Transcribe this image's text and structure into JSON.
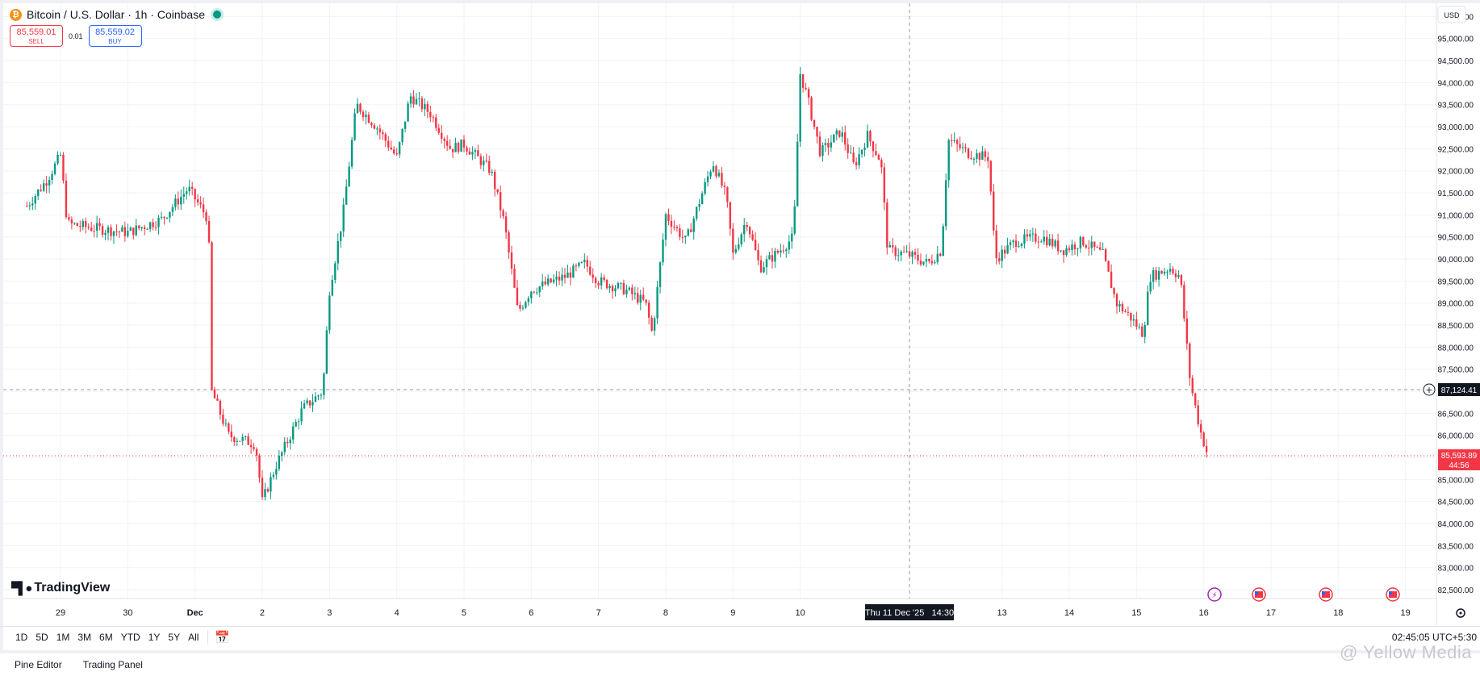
{
  "header": {
    "title": "Bitcoin / U.S. Dollar · 1h · Coinbase",
    "coin_icon": "bitcoin-icon",
    "status": "live-dot"
  },
  "trade": {
    "sell_price": "85,559.01",
    "sell_label": "SELL",
    "spread": "0.01",
    "buy_price": "85,559.02",
    "buy_label": "BUY"
  },
  "currency": "USD",
  "price_badges": {
    "marked_price": "87,124.41",
    "current_price": "85,593.89",
    "countdown": "44:56"
  },
  "crosshair_label": "Thu 11 Dec '25   14:30",
  "logo": "TradingView",
  "toolbar": {
    "ranges": [
      "1D",
      "5D",
      "1M",
      "3M",
      "6M",
      "YTD",
      "1Y",
      "5Y",
      "All"
    ],
    "clock": "02:45:05 UTC+5:30"
  },
  "panels": [
    "Pine Editor",
    "Trading Panel"
  ],
  "watermark": "@ Yellow Media",
  "colors": {
    "up": "#089981",
    "down": "#f23645",
    "grid": "#f0f3fa",
    "badge_dark": "#131722"
  },
  "chart_data": {
    "type": "candlestick",
    "title": "Bitcoin / U.S. Dollar · 1h · Coinbase",
    "xlabel": "",
    "ylabel": "",
    "x_ticks": [
      "29",
      "30",
      "Dec",
      "2",
      "3",
      "4",
      "5",
      "6",
      "7",
      "8",
      "9",
      "10",
      "13",
      "14",
      "15",
      "16",
      "17",
      "18",
      "19"
    ],
    "y_ticks": [
      "95,500.00",
      "95,000.00",
      "94,500.00",
      "94,000.00",
      "93,500.00",
      "93,000.00",
      "92,500.00",
      "92,000.00",
      "91,500.00",
      "91,000.00",
      "90,500.00",
      "90,000.00",
      "89,500.00",
      "89,000.00",
      "88,500.00",
      "88,000.00",
      "87,500.00",
      "87,000.00",
      "86,500.00",
      "86,000.00",
      "85,500.00",
      "85,000.00",
      "84,500.00",
      "84,000.00",
      "83,500.00",
      "83,000.00",
      "82,500.00"
    ],
    "ylim": [
      82300,
      95800
    ],
    "series": [
      {
        "name": "BTCUSD 1h",
        "points": [
          {
            "d": 28.5,
            "p": 91200
          },
          {
            "d": 28.8,
            "p": 91800
          },
          {
            "d": 29.0,
            "p": 92350
          },
          {
            "d": 29.1,
            "p": 90800
          },
          {
            "d": 29.5,
            "p": 90700
          },
          {
            "d": 30.0,
            "p": 90600
          },
          {
            "d": 30.5,
            "p": 90900
          },
          {
            "d": 30.9,
            "p": 91600
          },
          {
            "d": 31.2,
            "p": 90900
          },
          {
            "d": 31.25,
            "p": 87000
          },
          {
            "d": 31.5,
            "p": 86000
          },
          {
            "d": 31.9,
            "p": 85800
          },
          {
            "d": 32.0,
            "p": 84500
          },
          {
            "d": 32.2,
            "p": 85300
          },
          {
            "d": 32.6,
            "p": 86600
          },
          {
            "d": 32.9,
            "p": 87000
          },
          {
            "d": 33.0,
            "p": 89300
          },
          {
            "d": 33.2,
            "p": 91000
          },
          {
            "d": 33.4,
            "p": 93500
          },
          {
            "d": 33.7,
            "p": 93000
          },
          {
            "d": 34.0,
            "p": 92300
          },
          {
            "d": 34.2,
            "p": 93700
          },
          {
            "d": 34.5,
            "p": 93300
          },
          {
            "d": 34.8,
            "p": 92500
          },
          {
            "d": 35.0,
            "p": 92600
          },
          {
            "d": 35.4,
            "p": 92000
          },
          {
            "d": 35.6,
            "p": 90800
          },
          {
            "d": 35.8,
            "p": 88800
          },
          {
            "d": 36.0,
            "p": 89300
          },
          {
            "d": 36.5,
            "p": 89600
          },
          {
            "d": 36.8,
            "p": 89900
          },
          {
            "d": 37.0,
            "p": 89500
          },
          {
            "d": 37.4,
            "p": 89300
          },
          {
            "d": 37.7,
            "p": 89000
          },
          {
            "d": 37.8,
            "p": 88300
          },
          {
            "d": 38.0,
            "p": 91000
          },
          {
            "d": 38.3,
            "p": 90400
          },
          {
            "d": 38.7,
            "p": 92200
          },
          {
            "d": 38.9,
            "p": 91400
          },
          {
            "d": 39.0,
            "p": 90100
          },
          {
            "d": 39.2,
            "p": 90900
          },
          {
            "d": 39.4,
            "p": 89800
          },
          {
            "d": 39.7,
            "p": 90200
          },
          {
            "d": 39.9,
            "p": 90500
          },
          {
            "d": 40.0,
            "p": 94200
          },
          {
            "d": 40.1,
            "p": 93700
          },
          {
            "d": 40.3,
            "p": 92400
          },
          {
            "d": 40.6,
            "p": 92900
          },
          {
            "d": 40.8,
            "p": 92100
          },
          {
            "d": 41.0,
            "p": 92800
          },
          {
            "d": 41.2,
            "p": 92200
          },
          {
            "d": 41.3,
            "p": 90200
          },
          {
            "d": 41.6,
            "p": 90100
          },
          {
            "d": 41.9,
            "p": 89900
          },
          {
            "d": 42.1,
            "p": 90200
          },
          {
            "d": 42.2,
            "p": 92700
          },
          {
            "d": 42.5,
            "p": 92400
          },
          {
            "d": 42.8,
            "p": 92300
          },
          {
            "d": 42.9,
            "p": 90000
          },
          {
            "d": 43.2,
            "p": 90400
          },
          {
            "d": 43.6,
            "p": 90500
          },
          {
            "d": 43.9,
            "p": 90200
          },
          {
            "d": 44.2,
            "p": 90400
          },
          {
            "d": 44.5,
            "p": 90100
          },
          {
            "d": 44.7,
            "p": 89000
          },
          {
            "d": 44.9,
            "p": 88700
          },
          {
            "d": 45.1,
            "p": 88300
          },
          {
            "d": 45.2,
            "p": 89600
          },
          {
            "d": 45.5,
            "p": 89800
          },
          {
            "d": 45.65,
            "p": 89600
          },
          {
            "d": 45.8,
            "p": 87200
          },
          {
            "d": 45.95,
            "p": 86100
          },
          {
            "d": 46.05,
            "p": 85600
          }
        ]
      }
    ]
  }
}
